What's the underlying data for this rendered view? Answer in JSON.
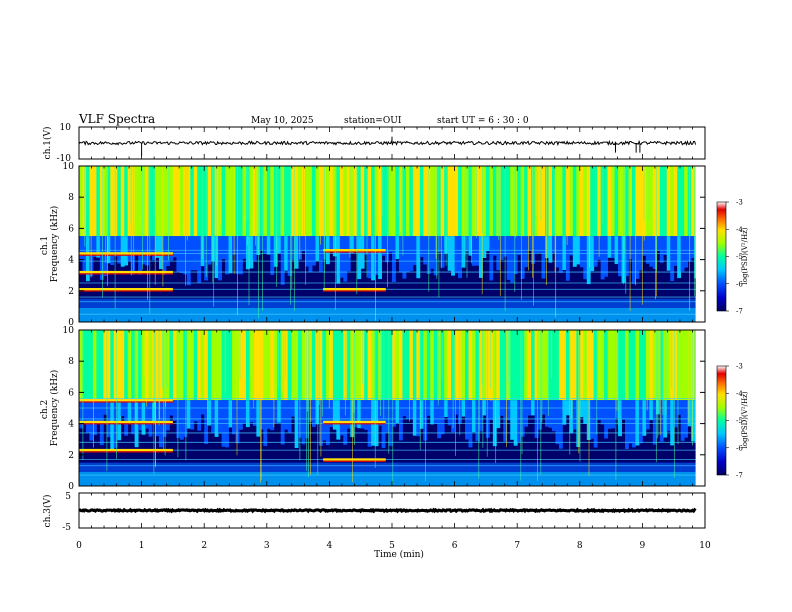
{
  "header": {
    "title": "VLF Spectra",
    "date": "May 10, 2025",
    "station": "station=OUI",
    "start": "start UT =  6 : 30 : 0"
  },
  "chart_data": [
    {
      "type": "line",
      "name": "ch1-waveform",
      "ylabel": "ch.1(V)",
      "ylim": [
        -10,
        10
      ],
      "y_ticks": [
        "10",
        "-10"
      ],
      "x_range_min": [
        0,
        9.85
      ],
      "baseline": 0,
      "amplitude": 1,
      "spikes": [
        {
          "x": 1.0,
          "y": -8
        },
        {
          "x": 5.0,
          "y": 4
        },
        {
          "x": 8.57,
          "y": -6
        },
        {
          "x": 8.9,
          "y": -6
        },
        {
          "x": 8.96,
          "y": -6
        }
      ]
    },
    {
      "type": "heatmap",
      "name": "ch1-spectrogram",
      "ylabel": "ch.1\nFrequency (kHz)",
      "ylim": [
        0,
        10
      ],
      "y_ticks": [
        "0",
        "2",
        "4",
        "6",
        "8",
        "10"
      ],
      "colorbar": {
        "label": "log(PSD)(V²/Hz)",
        "range": [
          -7,
          -3
        ],
        "ticks": [
          "-3",
          "-4",
          "-5",
          "-6",
          "-7"
        ]
      },
      "features": {
        "tones_khz": [
          0.5,
          1.3,
          1.6,
          2.1,
          2.5,
          3.2,
          3.9,
          4.4,
          4.6
        ],
        "band_segments": [
          {
            "t0": 0,
            "t1": 1.5,
            "f": 4.4
          },
          {
            "t0": 0,
            "t1": 1.5,
            "f": 2.1
          },
          {
            "t0": 0,
            "t1": 1.5,
            "f": 3.2
          },
          {
            "t0": 3.9,
            "t1": 4.9,
            "f": 4.6
          },
          {
            "t0": 3.9,
            "t1": 4.9,
            "f": 2.1
          }
        ],
        "hiss_min_khz": 5.5
      }
    },
    {
      "type": "heatmap",
      "name": "ch2-spectrogram",
      "ylabel": "ch.2\nFrequency (kHz)",
      "ylim": [
        0,
        10
      ],
      "y_ticks": [
        "0",
        "2",
        "4",
        "6",
        "8",
        "10"
      ],
      "colorbar": {
        "label": "log(PSD)(V²/Hz)",
        "range": [
          -7,
          -3
        ],
        "ticks": [
          "-3",
          "-4",
          "-5",
          "-6",
          "-7"
        ]
      },
      "features": {
        "tones_khz": [
          0.7,
          1.3,
          1.7,
          2.3,
          2.8,
          3.4,
          4.0,
          4.3,
          5.0,
          5.6
        ],
        "band_segments": [
          {
            "t0": 0,
            "t1": 1.5,
            "f": 4.1
          },
          {
            "t0": 0,
            "t1": 1.5,
            "f": 2.3
          },
          {
            "t0": 0,
            "t1": 1.5,
            "f": 5.5
          },
          {
            "t0": 3.9,
            "t1": 4.9,
            "f": 4.1
          },
          {
            "t0": 3.9,
            "t1": 4.9,
            "f": 1.7
          }
        ],
        "hiss_min_khz": 5.5
      }
    },
    {
      "type": "line",
      "name": "ch3-waveform",
      "ylabel": "ch.3(V)",
      "ylim": [
        -5,
        5
      ],
      "y_ticks": [
        "5",
        "-5"
      ],
      "x_range_min": [
        0,
        9.85
      ],
      "baseline": 0,
      "amplitude": 0.2,
      "spikes": []
    }
  ],
  "x_axis": {
    "label": "Time (min)",
    "range": [
      0,
      10
    ],
    "ticks": [
      "0",
      "1",
      "2",
      "3",
      "4",
      "5",
      "6",
      "7",
      "8",
      "9",
      "10"
    ]
  },
  "colormap": [
    "#000060",
    "#0000c8",
    "#0050ff",
    "#00c8ff",
    "#00ffa0",
    "#a0ff00",
    "#ffe000",
    "#ff7000",
    "#e00000",
    "#ffffff"
  ]
}
